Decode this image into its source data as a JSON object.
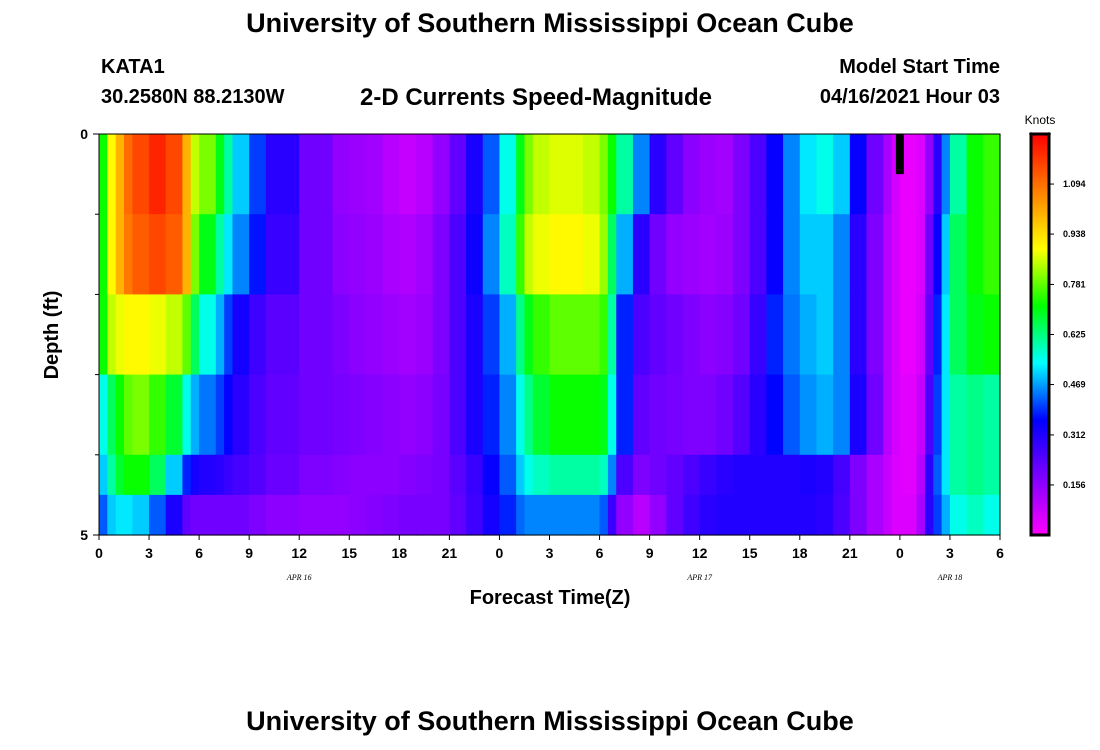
{
  "header": {
    "title": "University of Southern Mississippi Ocean Cube",
    "station": "KATA1",
    "coordinates": "30.2580N  88.2130W",
    "subtitle": "2-D Currents Speed-Magnitude",
    "model_start_label": "Model Start Time",
    "model_start_value": "04/16/2021 Hour 03"
  },
  "footer": {
    "title": "University of Southern Mississippi Ocean Cube"
  },
  "chart_data": {
    "type": "heatmap",
    "title": "2-D Currents Speed-Magnitude",
    "xlabel": "Forecast Time(Z)",
    "ylabel": "Depth (ft)",
    "x_range_hours": [
      0,
      54
    ],
    "y_range": [
      0,
      5
    ],
    "x_tick_labels": [
      "0",
      "3",
      "6",
      "9",
      "12",
      "15",
      "18",
      "21",
      "0",
      "3",
      "6",
      "9",
      "12",
      "15",
      "18",
      "21",
      "0",
      "3",
      "6"
    ],
    "y_tick_labels": [
      "0",
      "5"
    ],
    "y_minor_ticks": [
      1,
      2,
      3,
      4
    ],
    "date_labels": [
      {
        "text": "APR  16",
        "hour": 12
      },
      {
        "text": "APR  17",
        "hour": 36
      },
      {
        "text": "APR  18",
        "hour": 51
      }
    ],
    "depth_layers": [
      0,
      1,
      2,
      3,
      4,
      4.5
    ],
    "x_breakpoints_hours": [
      0,
      0.5,
      1,
      1.5,
      2,
      3,
      4,
      5,
      5.5,
      6,
      7,
      7.5,
      8,
      9,
      10,
      12,
      14,
      15,
      16,
      17,
      18,
      19,
      20,
      21,
      22,
      23,
      24,
      25,
      25.5,
      26,
      27,
      29,
      30,
      30.5,
      31,
      32,
      33,
      34,
      35,
      36,
      37,
      38,
      39,
      40,
      41,
      42,
      43,
      44,
      45,
      46,
      47,
      47.5,
      48,
      49,
      49.5,
      50,
      50.5,
      51,
      52,
      53,
      54
    ],
    "speed_knots": [
      [
        0.72,
        0.9,
        1.0,
        1.1,
        1.15,
        1.2,
        1.15,
        1.0,
        0.85,
        0.8,
        0.7,
        0.6,
        0.5,
        0.4,
        0.3,
        0.2,
        0.15,
        0.14,
        0.13,
        0.1,
        0.08,
        0.1,
        0.15,
        0.22,
        0.32,
        0.42,
        0.55,
        0.7,
        0.8,
        0.85,
        0.87,
        0.85,
        0.8,
        0.72,
        0.6,
        0.45,
        0.3,
        0.22,
        0.16,
        0.14,
        0.13,
        0.18,
        0.25,
        0.35,
        0.45,
        0.52,
        0.55,
        0.5,
        0.35,
        0.2,
        0.12,
        0.06,
        0.03,
        0.05,
        0.15,
        0.3,
        0.45,
        0.6,
        0.72,
        0.75
      ],
      [
        0.72,
        0.9,
        1.0,
        1.08,
        1.12,
        1.15,
        1.12,
        1.0,
        0.8,
        0.7,
        0.6,
        0.52,
        0.45,
        0.37,
        0.28,
        0.2,
        0.16,
        0.15,
        0.14,
        0.12,
        0.11,
        0.13,
        0.18,
        0.25,
        0.34,
        0.45,
        0.58,
        0.75,
        0.85,
        0.88,
        0.9,
        0.88,
        0.82,
        0.65,
        0.48,
        0.3,
        0.2,
        0.15,
        0.14,
        0.13,
        0.14,
        0.18,
        0.25,
        0.35,
        0.45,
        0.5,
        0.5,
        0.45,
        0.3,
        0.18,
        0.1,
        0.06,
        0.03,
        0.05,
        0.2,
        0.35,
        0.5,
        0.65,
        0.72,
        0.75
      ],
      [
        0.72,
        0.85,
        0.88,
        0.9,
        0.9,
        0.88,
        0.85,
        0.78,
        0.65,
        0.55,
        0.48,
        0.4,
        0.33,
        0.27,
        0.23,
        0.2,
        0.18,
        0.16,
        0.15,
        0.14,
        0.13,
        0.14,
        0.18,
        0.25,
        0.32,
        0.4,
        0.48,
        0.62,
        0.7,
        0.75,
        0.78,
        0.78,
        0.75,
        0.6,
        0.38,
        0.25,
        0.22,
        0.2,
        0.18,
        0.16,
        0.17,
        0.2,
        0.28,
        0.38,
        0.44,
        0.48,
        0.5,
        0.45,
        0.3,
        0.18,
        0.1,
        0.06,
        0.03,
        0.06,
        0.22,
        0.38,
        0.52,
        0.65,
        0.7,
        0.72
      ],
      [
        0.55,
        0.65,
        0.72,
        0.78,
        0.8,
        0.75,
        0.68,
        0.55,
        0.48,
        0.44,
        0.4,
        0.35,
        0.3,
        0.25,
        0.22,
        0.2,
        0.19,
        0.18,
        0.17,
        0.16,
        0.15,
        0.16,
        0.19,
        0.25,
        0.32,
        0.38,
        0.45,
        0.55,
        0.62,
        0.68,
        0.72,
        0.72,
        0.7,
        0.55,
        0.38,
        0.22,
        0.2,
        0.19,
        0.18,
        0.18,
        0.2,
        0.24,
        0.3,
        0.36,
        0.42,
        0.46,
        0.48,
        0.45,
        0.32,
        0.2,
        0.1,
        0.06,
        0.04,
        0.08,
        0.25,
        0.4,
        0.52,
        0.6,
        0.62,
        0.6
      ],
      [
        0.5,
        0.6,
        0.68,
        0.72,
        0.72,
        0.65,
        0.5,
        0.38,
        0.33,
        0.31,
        0.3,
        0.28,
        0.26,
        0.24,
        0.21,
        0.18,
        0.17,
        0.16,
        0.16,
        0.16,
        0.17,
        0.18,
        0.19,
        0.23,
        0.28,
        0.35,
        0.42,
        0.5,
        0.55,
        0.58,
        0.6,
        0.6,
        0.58,
        0.45,
        0.25,
        0.18,
        0.2,
        0.22,
        0.25,
        0.28,
        0.3,
        0.31,
        0.31,
        0.31,
        0.31,
        0.32,
        0.31,
        0.26,
        0.18,
        0.12,
        0.08,
        0.05,
        0.04,
        0.1,
        0.3,
        0.42,
        0.52,
        0.6,
        0.62,
        0.6
      ],
      [
        0.42,
        0.5,
        0.52,
        0.52,
        0.5,
        0.42,
        0.32,
        0.22,
        0.2,
        0.2,
        0.2,
        0.2,
        0.2,
        0.18,
        0.16,
        0.15,
        0.15,
        0.16,
        0.17,
        0.18,
        0.19,
        0.19,
        0.19,
        0.22,
        0.27,
        0.33,
        0.38,
        0.43,
        0.45,
        0.45,
        0.45,
        0.45,
        0.42,
        0.28,
        0.15,
        0.1,
        0.15,
        0.22,
        0.27,
        0.3,
        0.31,
        0.31,
        0.31,
        0.31,
        0.31,
        0.31,
        0.3,
        0.25,
        0.18,
        0.12,
        0.08,
        0.05,
        0.05,
        0.12,
        0.3,
        0.4,
        0.48,
        0.55,
        0.58,
        0.55
      ]
    ],
    "missing_marker": {
      "hour": 48,
      "depth": [
        0,
        0.5
      ],
      "color": "#000000"
    },
    "colorbar": {
      "unit": "Knots",
      "labels": [
        "0.156",
        "0.312",
        "0.469",
        "0.625",
        "0.781",
        "0.938",
        "1.094"
      ],
      "range": [
        0,
        1.25
      ],
      "colors": [
        "#ff00ff",
        "#7f00ff",
        "#0000ff",
        "#00ffff",
        "#00ff00",
        "#ffff00",
        "#ff7f00",
        "#ff0000"
      ]
    }
  }
}
